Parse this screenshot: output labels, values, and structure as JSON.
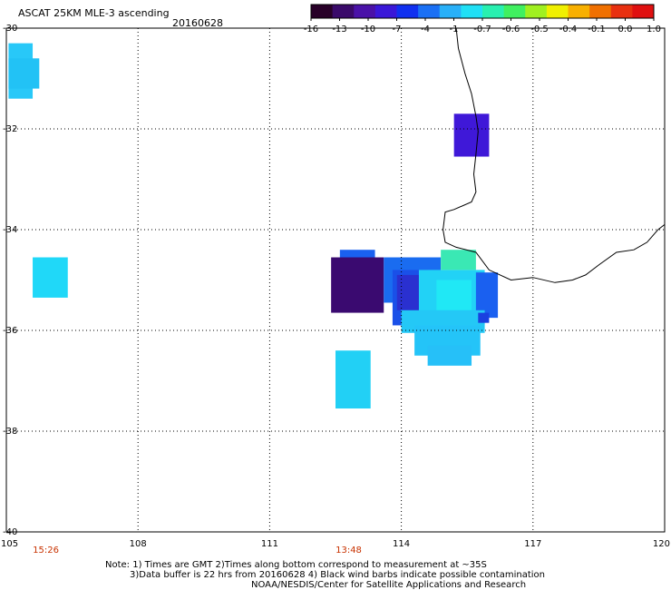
{
  "header": {
    "product": "ASCAT 25KM MLE-3 ascending",
    "date": "20160628"
  },
  "colorbar": {
    "colors": [
      "#280028",
      "#3a0a6a",
      "#4a12a8",
      "#3a18d8",
      "#1030f0",
      "#1a70f5",
      "#28b0f8",
      "#20e0f5",
      "#28f0b0",
      "#40f060",
      "#a0f020",
      "#f0f000",
      "#f8b000",
      "#f07000",
      "#e83010",
      "#e01010"
    ],
    "labels": [
      "-16",
      "-13",
      "-10",
      "-7",
      "-4",
      "-1",
      "-0.7",
      "-0.6",
      "-0.5",
      "-0.4",
      "-0.1",
      "0.0",
      "1.0"
    ]
  },
  "map": {
    "lat_labels": [
      "-30",
      "-32",
      "-34",
      "-36",
      "-38",
      "-40"
    ],
    "lon_labels": [
      "105",
      "108",
      "111",
      "114",
      "117",
      "120"
    ],
    "lat_values": [
      -30,
      -32,
      -34,
      -36,
      -38,
      -40
    ],
    "lon_values": [
      105,
      108,
      111,
      114,
      117,
      120
    ],
    "lat_range": [
      -40,
      -30
    ],
    "lon_range": [
      105,
      120
    ],
    "grid": "dotted",
    "coastline_color": "#000000",
    "cells": [
      {
        "lon0": 105.05,
        "lon1": 105.6,
        "lat0": -31.4,
        "lat1": -30.3,
        "color": "#28c8f8"
      },
      {
        "lon0": 105.05,
        "lon1": 105.75,
        "lat0": -31.2,
        "lat1": -30.6,
        "color": "#22c2f5"
      },
      {
        "lon0": 105.6,
        "lon1": 106.4,
        "lat0": -35.35,
        "lat1": -34.55,
        "color": "#20d8f8"
      },
      {
        "lon0": 115.2,
        "lon1": 116.0,
        "lat0": -32.55,
        "lat1": -31.7,
        "color": "#3f18d8"
      },
      {
        "lon0": 112.5,
        "lon1": 113.3,
        "lat0": -37.55,
        "lat1": -36.4,
        "color": "#22d0f5"
      },
      {
        "lon0": 112.6,
        "lon1": 113.4,
        "lat0": -34.8,
        "lat1": -34.4,
        "color": "#1a60f0"
      },
      {
        "lon0": 112.6,
        "lon1": 113.2,
        "lat0": -34.95,
        "lat1": -34.75,
        "color": "#2a20c8"
      },
      {
        "lon0": 112.4,
        "lon1": 113.6,
        "lat0": -35.65,
        "lat1": -34.55,
        "color": "#3a0a70"
      },
      {
        "lon0": 113.6,
        "lon1": 114.9,
        "lat0": -35.45,
        "lat1": -34.55,
        "color": "#1a6cf0"
      },
      {
        "lon0": 113.8,
        "lon1": 114.6,
        "lat0": -35.9,
        "lat1": -34.8,
        "color": "#1a50e8"
      },
      {
        "lon0": 113.9,
        "lon1": 114.4,
        "lat0": -35.6,
        "lat1": -34.9,
        "color": "#2a30d0"
      },
      {
        "lon0": 114.4,
        "lon1": 115.9,
        "lat0": -35.9,
        "lat1": -34.8,
        "color": "#22d2f6"
      },
      {
        "lon0": 114.8,
        "lon1": 115.6,
        "lat0": -35.6,
        "lat1": -35.0,
        "color": "#20e8f5"
      },
      {
        "lon0": 114.9,
        "lon1": 115.7,
        "lat0": -34.8,
        "lat1": -34.4,
        "color": "#3ae8b4"
      },
      {
        "lon0": 115.7,
        "lon1": 116.2,
        "lat0": -35.75,
        "lat1": -34.85,
        "color": "#1a60f0"
      },
      {
        "lon0": 114.0,
        "lon1": 115.9,
        "lat0": -36.05,
        "lat1": -35.6,
        "color": "#24c8f6"
      },
      {
        "lon0": 114.3,
        "lon1": 115.8,
        "lat0": -36.5,
        "lat1": -35.9,
        "color": "#24c4f8"
      },
      {
        "lon0": 114.6,
        "lon1": 115.6,
        "lat0": -36.7,
        "lat1": -36.3,
        "color": "#26c0f8"
      },
      {
        "lon0": 115.75,
        "lon1": 116.0,
        "lat0": -35.85,
        "lat1": -35.65,
        "color": "#1a40e0"
      }
    ],
    "coastline": [
      [
        115.25,
        -30.0
      ],
      [
        115.3,
        -30.4
      ],
      [
        115.45,
        -30.9
      ],
      [
        115.6,
        -31.3
      ],
      [
        115.7,
        -31.75
      ],
      [
        115.75,
        -32.05
      ],
      [
        115.7,
        -32.5
      ],
      [
        115.65,
        -32.9
      ],
      [
        115.7,
        -33.25
      ],
      [
        115.6,
        -33.45
      ],
      [
        115.2,
        -33.6
      ],
      [
        115.0,
        -33.65
      ],
      [
        114.95,
        -34.0
      ],
      [
        115.0,
        -34.25
      ],
      [
        115.25,
        -34.35
      ],
      [
        115.7,
        -34.45
      ],
      [
        116.0,
        -34.8
      ],
      [
        116.5,
        -35.0
      ],
      [
        117.0,
        -34.95
      ],
      [
        117.5,
        -35.05
      ],
      [
        117.9,
        -35.0
      ],
      [
        118.2,
        -34.9
      ],
      [
        118.5,
        -34.7
      ],
      [
        118.9,
        -34.45
      ],
      [
        119.3,
        -34.4
      ],
      [
        119.6,
        -34.25
      ],
      [
        119.85,
        -34.0
      ],
      [
        120.0,
        -33.9
      ]
    ]
  },
  "time_labels": [
    {
      "text": "15:26",
      "lon": 105.9
    },
    {
      "text": "13:48",
      "lon": 112.8
    }
  ],
  "notes": {
    "line1": "Note: 1) Times are GMT 2)Times along bottom correspond to measurement at ~35S",
    "line2": "3)Data buffer is 22 hrs from 20160628 4) Black wind barbs indicate possible contamination",
    "line3": "NOAA/NESDIS/Center for Satellite Applications and Research"
  }
}
